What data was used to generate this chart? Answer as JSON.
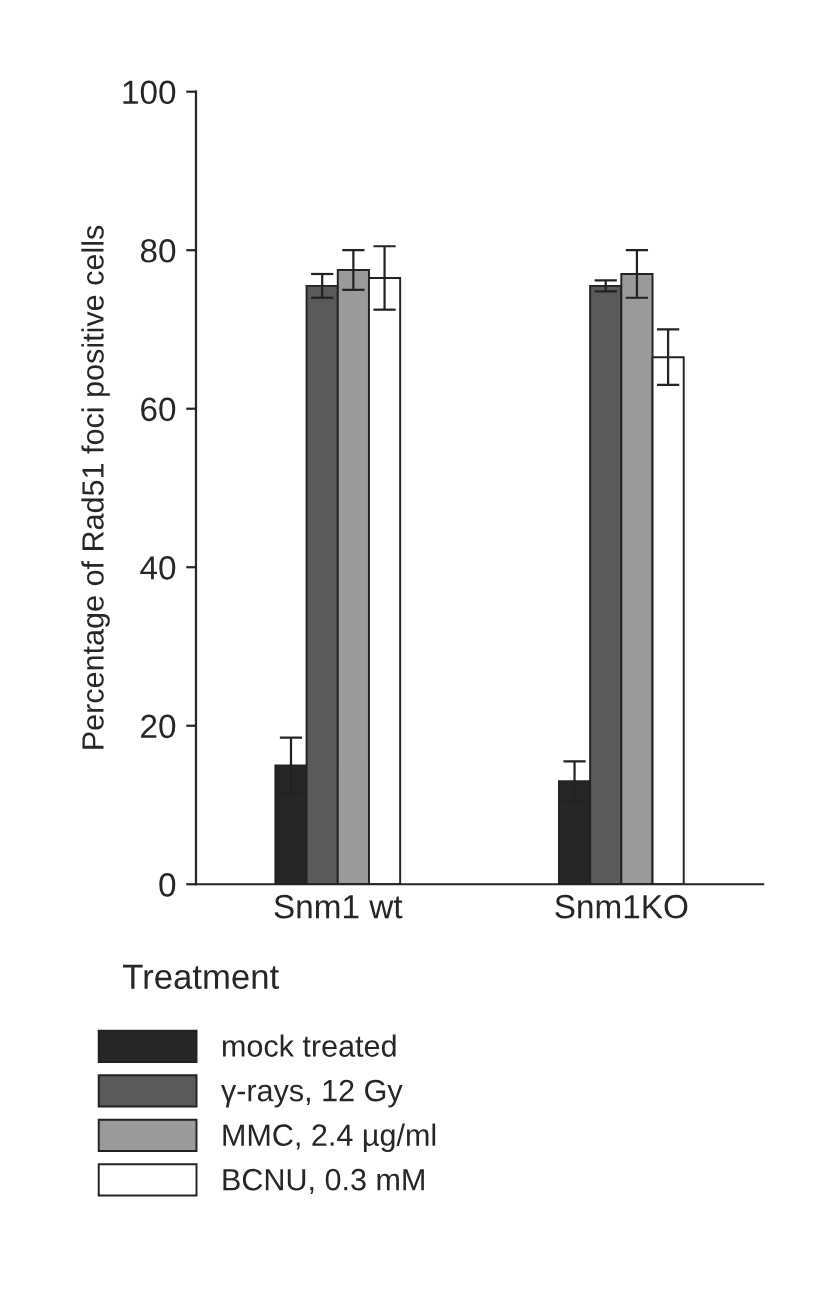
{
  "chart_data": {
    "type": "bar",
    "categories": [
      "Snm1 wt",
      "Snm1KO"
    ],
    "xlabel": "Treatment",
    "ylabel": "Percentage of Rad51 foci positive cells",
    "ylim": [
      0,
      100
    ],
    "yticks": [
      0,
      20,
      40,
      60,
      80,
      100
    ],
    "grid": false,
    "legend": "bottom",
    "series": [
      {
        "name": "mock treated",
        "color": "#262626",
        "values": [
          15,
          13
        ],
        "errors": [
          3.5,
          2.5
        ]
      },
      {
        "name": "γ-rays, 12 Gy",
        "color": "#5a5a5a",
        "values": [
          75.5,
          75.5
        ],
        "errors": [
          1.5,
          0.7
        ]
      },
      {
        "name": "MMC, 2.4 µg/ml",
        "color": "#9a9a9a",
        "values": [
          77.5,
          77
        ],
        "errors": [
          2.5,
          3
        ]
      },
      {
        "name": "BCNU, 0.3 mM",
        "color": "#ffffff",
        "values": [
          76.5,
          66.5
        ],
        "errors": [
          4,
          3.5
        ]
      }
    ]
  }
}
